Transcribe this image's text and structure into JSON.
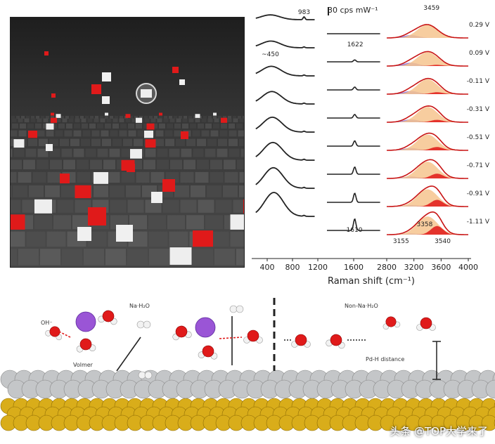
{
  "colors": {
    "gold": "#d9ad1a",
    "silver": "#c4c6c8",
    "oxygen": "#e01a1a",
    "hydrogen": "#f2f2f2",
    "cation": "#9a55d6",
    "fit_orange": "#f6c48e",
    "fit_red": "#e01818",
    "fit_purple": "#8a6cd6",
    "raw_spectrum": "#c81414"
  },
  "chart_data": {
    "type": "line",
    "xlabel": "Raman shift (cm⁻¹)",
    "scale_bar": "30 cps mW⁻¹",
    "panels": [
      {
        "range": [
          200,
          1200
        ],
        "ticks": [
          400,
          800,
          1200
        ],
        "peak_labels": [
          {
            "text": "~450",
            "x": 450
          },
          {
            "text": "983",
            "x": 983
          }
        ]
      },
      {
        "range": [
          1200,
          2000
        ],
        "ticks": [
          1600
        ],
        "peak_labels": [
          {
            "text": "1622",
            "x": 1622
          },
          {
            "text": "1610",
            "x": 1610
          }
        ]
      },
      {
        "range": [
          2800,
          4000
        ],
        "ticks": [
          2800,
          3200,
          3600,
          4000
        ],
        "peak_labels": [
          {
            "text": "3459",
            "x": 3459
          },
          {
            "text": "3155",
            "x": 3155
          },
          {
            "text": "3358",
            "x": 3358
          },
          {
            "text": "3540",
            "x": 3540
          }
        ]
      }
    ],
    "series": [
      {
        "name": "0.29 V",
        "low_peak": 0.2,
        "bend_peak": 0.0,
        "oh": {
          "orange": 0.55,
          "red": 0.0,
          "purple": 0.12
        }
      },
      {
        "name": "0.09 V",
        "low_peak": 0.28,
        "bend_peak": 0.08,
        "oh": {
          "orange": 0.58,
          "red": 0.05,
          "purple": 0.14
        }
      },
      {
        "name": "-0.11 V",
        "low_peak": 0.4,
        "bend_peak": 0.12,
        "oh": {
          "orange": 0.62,
          "red": 0.08,
          "purple": 0.13
        }
      },
      {
        "name": "-0.31 V",
        "low_peak": 0.52,
        "bend_peak": 0.15,
        "oh": {
          "orange": 0.64,
          "red": 0.1,
          "purple": 0.12
        }
      },
      {
        "name": "-0.51 V",
        "low_peak": 0.62,
        "bend_peak": 0.22,
        "oh": {
          "orange": 0.66,
          "red": 0.14,
          "purple": 0.1
        }
      },
      {
        "name": "-0.71 V",
        "low_peak": 0.74,
        "bend_peak": 0.3,
        "oh": {
          "orange": 0.7,
          "red": 0.2,
          "purple": 0.08
        }
      },
      {
        "name": "-0.91 V",
        "low_peak": 0.86,
        "bend_peak": 0.38,
        "oh": {
          "orange": 0.72,
          "red": 0.28,
          "purple": 0.06
        }
      },
      {
        "name": "-1.11 V",
        "low_peak": 1.0,
        "bend_peak": 0.48,
        "oh": {
          "orange": 0.76,
          "red": 0.36,
          "purple": 0.05
        }
      }
    ]
  },
  "schematic": {
    "label_left": "Na·H₂O",
    "label_right": "Non-Na·H₂O",
    "oh_label": "OH⁻",
    "volmer_label": "Volmer",
    "distance_label": "Pd-H distance"
  },
  "watermark": "头条 @TOP大学来了"
}
